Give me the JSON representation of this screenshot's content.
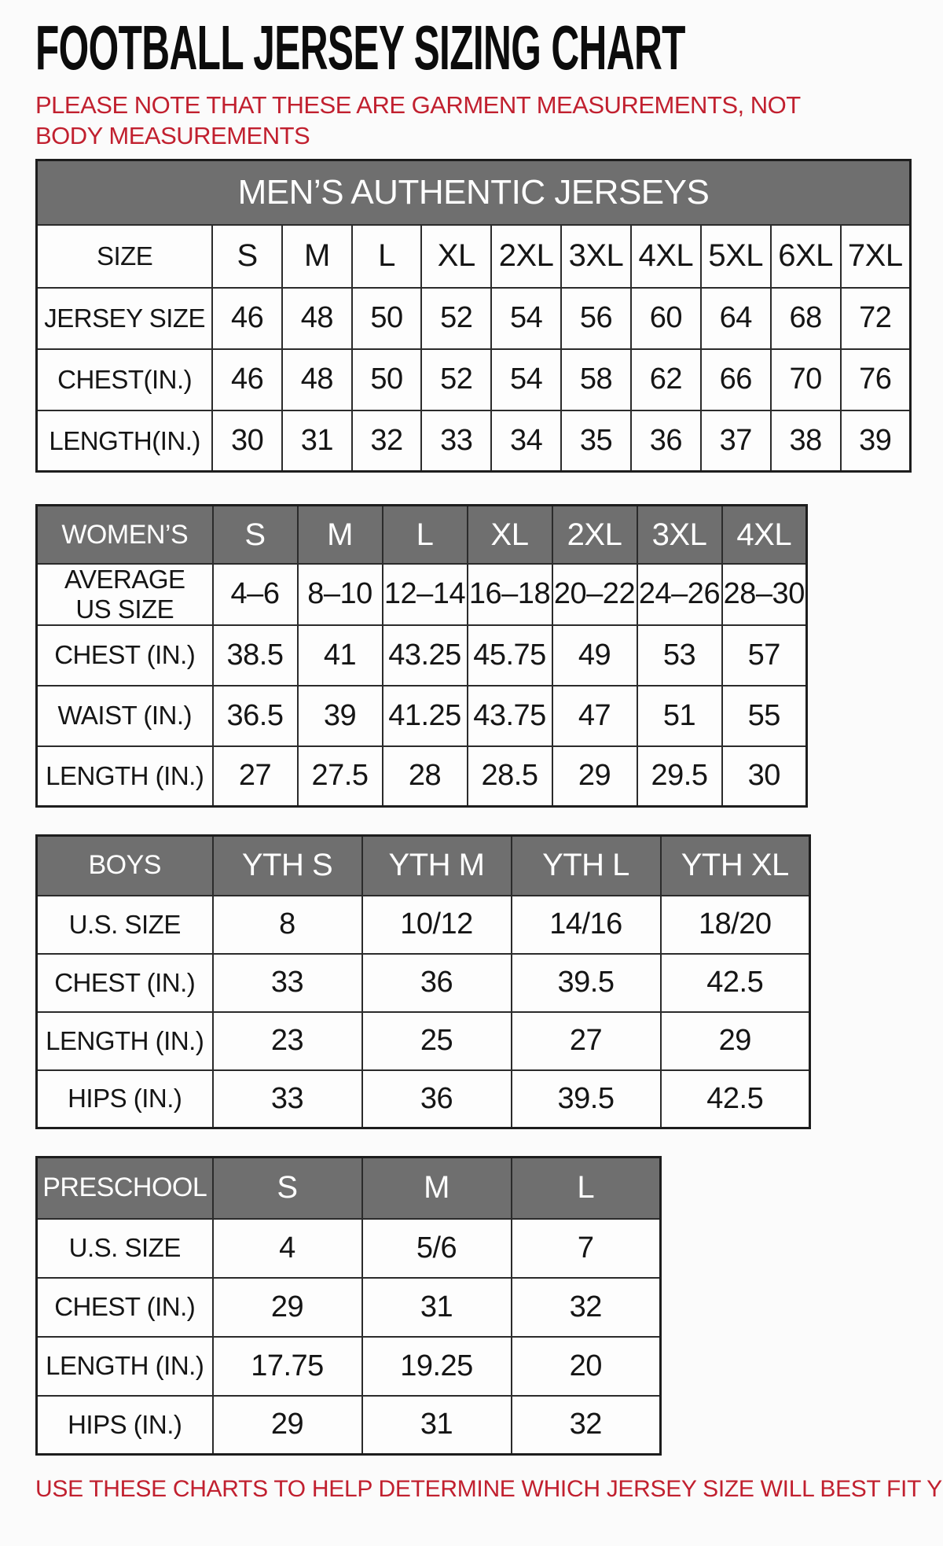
{
  "page": {
    "title": "FOOTBALL JERSEY SIZING CHART",
    "note": "PLEASE NOTE THAT THESE ARE GARMENT MEASUREMENTS, NOT BODY MEASUREMENTS",
    "footer": "USE THESE CHARTS TO HELP DETERMINE WHICH JERSEY SIZE WILL BEST FIT YOU.",
    "colors": {
      "accent_red": "#C1202F",
      "header_gray": "#6F6F6F",
      "text_black": "#151515",
      "border_dark": "#2B2B2B"
    }
  },
  "tables": {
    "men": {
      "banner": "MEN’S AUTHENTIC JERSEYS",
      "header": {
        "label": "SIZE",
        "cols": [
          "S",
          "M",
          "L",
          "XL",
          "2XL",
          "3XL",
          "4XL",
          "5XL",
          "6XL",
          "7XL"
        ]
      },
      "rows": [
        {
          "label": "JERSEY SIZE",
          "values": [
            "46",
            "48",
            "50",
            "52",
            "54",
            "56",
            "60",
            "64",
            "68",
            "72"
          ]
        },
        {
          "label": "CHEST(IN.)",
          "values": [
            "46",
            "48",
            "50",
            "52",
            "54",
            "58",
            "62",
            "66",
            "70",
            "76"
          ]
        },
        {
          "label": "LENGTH(IN.)",
          "values": [
            "30",
            "31",
            "32",
            "33",
            "34",
            "35",
            "36",
            "37",
            "38",
            "39"
          ]
        }
      ]
    },
    "women": {
      "header": {
        "label": "WOMEN’S",
        "cols": [
          "S",
          "M",
          "L",
          "XL",
          "2XL",
          "3XL",
          "4XL"
        ]
      },
      "rows": [
        {
          "label": "AVERAGE\nUS SIZE",
          "values": [
            "4–6",
            "8–10",
            "12–14",
            "16–18",
            "20–22",
            "24–26",
            "28–30"
          ]
        },
        {
          "label": "CHEST (IN.)",
          "values": [
            "38.5",
            "41",
            "43.25",
            "45.75",
            "49",
            "53",
            "57"
          ]
        },
        {
          "label": "WAIST (IN.)",
          "values": [
            "36.5",
            "39",
            "41.25",
            "43.75",
            "47",
            "51",
            "55"
          ]
        },
        {
          "label": "LENGTH (IN.)",
          "values": [
            "27",
            "27.5",
            "28",
            "28.5",
            "29",
            "29.5",
            "30"
          ]
        }
      ]
    },
    "boys": {
      "header": {
        "label": "BOYS",
        "cols": [
          "YTH S",
          "YTH M",
          "YTH L",
          "YTH XL"
        ]
      },
      "rows": [
        {
          "label": "U.S. SIZE",
          "values": [
            "8",
            "10/12",
            "14/16",
            "18/20"
          ]
        },
        {
          "label": "CHEST (IN.)",
          "values": [
            "33",
            "36",
            "39.5",
            "42.5"
          ]
        },
        {
          "label": "LENGTH (IN.)",
          "values": [
            "23",
            "25",
            "27",
            "29"
          ]
        },
        {
          "label": "HIPS (IN.)",
          "values": [
            "33",
            "36",
            "39.5",
            "42.5"
          ]
        }
      ]
    },
    "preschool": {
      "header": {
        "label": "PRESCHOOL",
        "cols": [
          "S",
          "M",
          "L"
        ]
      },
      "rows": [
        {
          "label": "U.S. SIZE",
          "values": [
            "4",
            "5/6",
            "7"
          ]
        },
        {
          "label": "CHEST (IN.)",
          "values": [
            "29",
            "31",
            "32"
          ]
        },
        {
          "label": "LENGTH (IN.)",
          "values": [
            "17.75",
            "19.25",
            "20"
          ]
        },
        {
          "label": "HIPS (IN.)",
          "values": [
            "29",
            "31",
            "32"
          ]
        }
      ]
    }
  }
}
